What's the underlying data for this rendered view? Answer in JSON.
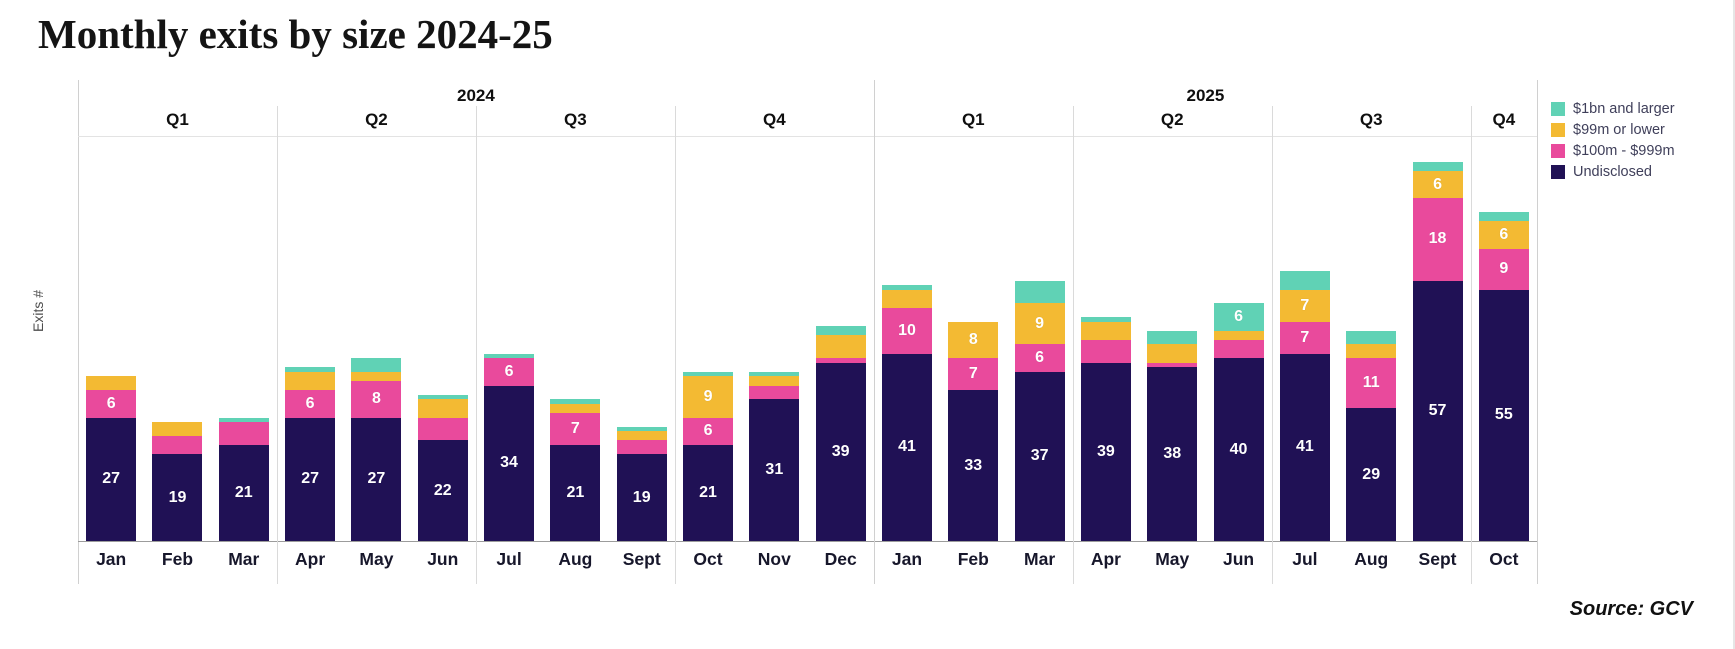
{
  "title": "Monthly exits by size 2024-25",
  "source": "Source: GCV",
  "legend": [
    {
      "key": "usd1bn-and-larger",
      "label": "$1bn and larger",
      "color": "#60d2b5"
    },
    {
      "key": "usd99m-or-lower",
      "label": "$99m or lower",
      "color": "#f3ba33"
    },
    {
      "key": "usd100m-999m",
      "label": "$100m - $999m",
      "color": "#e94a9c"
    },
    {
      "key": "undisclosed",
      "label": "Undisclosed",
      "color": "#201155"
    }
  ],
  "chart_data": {
    "type": "bar",
    "stacked": true,
    "title": "Monthly exits by size 2024-25",
    "xlabel": "",
    "ylabel": "Exits #",
    "grid": false,
    "legend_position": "top-right",
    "value_label_threshold": 6,
    "groups": [
      {
        "year": "2024",
        "quarters": [
          {
            "label": "Q1",
            "months": [
              "Jan",
              "Feb",
              "Mar"
            ]
          },
          {
            "label": "Q2",
            "months": [
              "Apr",
              "May",
              "Jun"
            ]
          },
          {
            "label": "Q3",
            "months": [
              "Jul",
              "Aug",
              "Sept"
            ]
          },
          {
            "label": "Q4",
            "months": [
              "Oct",
              "Nov",
              "Dec"
            ]
          }
        ]
      },
      {
        "year": "2025",
        "quarters": [
          {
            "label": "Q1",
            "months": [
              "Jan",
              "Feb",
              "Mar"
            ]
          },
          {
            "label": "Q2",
            "months": [
              "Apr",
              "May",
              "Jun"
            ]
          },
          {
            "label": "Q3",
            "months": [
              "Jul",
              "Aug",
              "Sept"
            ]
          },
          {
            "label": "Q4",
            "months": [
              "Oct"
            ]
          }
        ]
      }
    ],
    "categories": [
      "Jan 2024",
      "Feb 2024",
      "Mar 2024",
      "Apr 2024",
      "May 2024",
      "Jun 2024",
      "Jul 2024",
      "Aug 2024",
      "Sept 2024",
      "Oct 2024",
      "Nov 2024",
      "Dec 2024",
      "Jan 2025",
      "Feb 2025",
      "Mar 2025",
      "Apr 2025",
      "May 2025",
      "Jun 2025",
      "Jul 2025",
      "Aug 2025",
      "Sept 2025",
      "Oct 2025"
    ],
    "series": [
      {
        "name": "Undisclosed",
        "key": "undisclosed",
        "color": "#201155",
        "values": [
          27,
          19,
          21,
          27,
          27,
          22,
          34,
          21,
          19,
          21,
          31,
          39,
          41,
          33,
          37,
          39,
          38,
          40,
          41,
          29,
          57,
          55
        ]
      },
      {
        "name": "$100m - $999m",
        "key": "usd100m-999m",
        "color": "#e94a9c",
        "values": [
          6,
          4,
          5,
          6,
          8,
          5,
          6,
          7,
          3,
          6,
          3,
          1,
          10,
          7,
          6,
          5,
          1,
          4,
          7,
          11,
          18,
          9
        ]
      },
      {
        "name": "$99m or lower",
        "key": "usd99m-or-lower",
        "color": "#f3ba33",
        "values": [
          3,
          3,
          0,
          4,
          2,
          4,
          0,
          2,
          2,
          9,
          2,
          5,
          4,
          8,
          9,
          4,
          4,
          2,
          7,
          3,
          6,
          6
        ]
      },
      {
        "name": "$1bn and larger",
        "key": "usd1bn-and-larger",
        "color": "#60d2b5",
        "values": [
          0,
          0,
          1,
          1,
          3,
          1,
          1,
          1,
          1,
          1,
          1,
          2,
          1,
          0,
          5,
          1,
          3,
          6,
          4,
          3,
          2,
          2
        ]
      }
    ]
  }
}
